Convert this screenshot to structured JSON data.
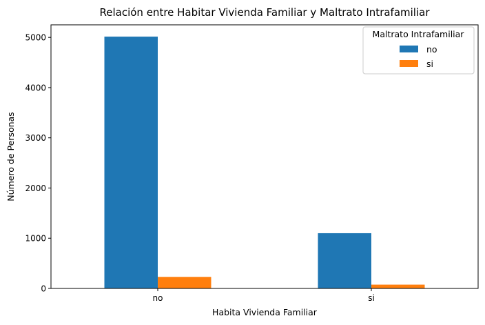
{
  "chart_data": {
    "type": "bar",
    "title": "Relación entre Habitar Vivienda Familiar y Maltrato Intrafamiliar",
    "xlabel": "Habita Vivienda Familiar",
    "ylabel": "Número de Personas",
    "categories": [
      "no",
      "si"
    ],
    "series": [
      {
        "name": "no",
        "color": "#1f77b4",
        "values": [
          5015,
          1100
        ]
      },
      {
        "name": "si",
        "color": "#ff7f0e",
        "values": [
          230,
          75
        ]
      }
    ],
    "ylim": [
      0,
      5250
    ],
    "yticks": [
      0,
      1000,
      2000,
      3000,
      4000,
      5000
    ],
    "legend": {
      "title": "Maltrato Intrafamiliar",
      "placement": "top-right"
    },
    "grid": false
  }
}
